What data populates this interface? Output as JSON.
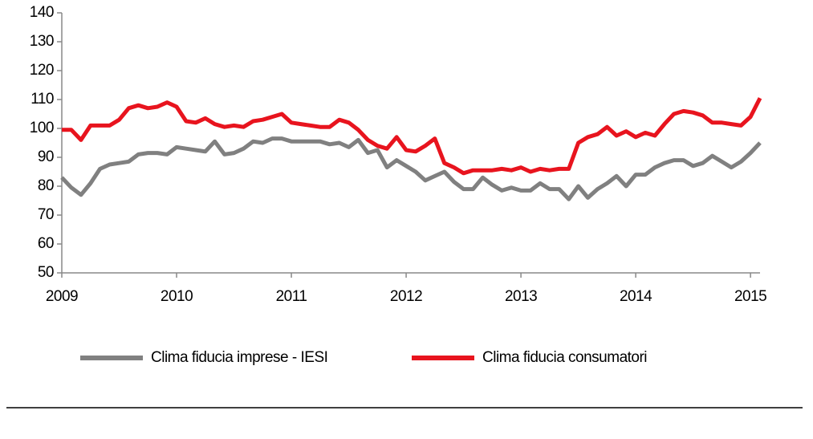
{
  "chart_data": {
    "type": "line",
    "x": [
      2009,
      2009.083,
      2009.167,
      2009.25,
      2009.333,
      2009.417,
      2009.5,
      2009.583,
      2009.667,
      2009.75,
      2009.833,
      2009.917,
      2010,
      2010.083,
      2010.167,
      2010.25,
      2010.333,
      2010.417,
      2010.5,
      2010.583,
      2010.667,
      2010.75,
      2010.833,
      2010.917,
      2011,
      2011.083,
      2011.167,
      2011.25,
      2011.333,
      2011.417,
      2011.5,
      2011.583,
      2011.667,
      2011.75,
      2011.833,
      2011.917,
      2012,
      2012.083,
      2012.167,
      2012.25,
      2012.333,
      2012.417,
      2012.5,
      2012.583,
      2012.667,
      2012.75,
      2012.833,
      2012.917,
      2013,
      2013.083,
      2013.167,
      2013.25,
      2013.333,
      2013.417,
      2013.5,
      2013.583,
      2013.667,
      2013.75,
      2013.833,
      2013.917,
      2014,
      2014.083,
      2014.167,
      2014.25,
      2014.333,
      2014.417,
      2014.5,
      2014.583,
      2014.667,
      2014.75,
      2014.833,
      2014.917,
      2015,
      2015.083
    ],
    "series": [
      {
        "name": "Clima fiducia imprese - IESI",
        "color": "#808080",
        "values": [
          83,
          79.5,
          77,
          81,
          86,
          87.5,
          88,
          88.5,
          91,
          91.5,
          91.5,
          91,
          93.5,
          93,
          92.5,
          92,
          95.5,
          91,
          91.5,
          93,
          95.5,
          95,
          96.5,
          96.5,
          95.5,
          95.5,
          95.5,
          95.5,
          94.5,
          95,
          93.5,
          96,
          91.5,
          92.5,
          86.5,
          89,
          87,
          85,
          82,
          83.5,
          85,
          81.5,
          79,
          79,
          83,
          80.5,
          78.5,
          79.5,
          78.5,
          78.5,
          81,
          79,
          79,
          75.5,
          80,
          76,
          79,
          81,
          83.5,
          80,
          84,
          84,
          86.5,
          88,
          89,
          89,
          87,
          88,
          90.5,
          88.5,
          86.5,
          88.5,
          91.5,
          95
        ]
      },
      {
        "name": "Clima fiducia consumatori",
        "color": "#e8141e",
        "values": [
          99.5,
          99.5,
          96,
          101,
          101,
          101,
          103,
          107,
          108,
          107,
          107.5,
          109,
          107.5,
          102.5,
          102,
          103.5,
          101.5,
          100.5,
          101,
          100.5,
          102.5,
          103,
          104,
          105,
          102,
          101.5,
          101,
          100.5,
          100.5,
          103,
          102,
          99.5,
          96,
          94,
          93,
          97,
          92.5,
          92,
          94,
          96.5,
          88,
          86.5,
          84.5,
          85.5,
          85.5,
          85.5,
          86,
          85.5,
          86.5,
          85,
          86,
          85.5,
          86,
          86,
          95,
          97,
          98,
          100.5,
          97.5,
          99,
          97,
          98.5,
          97.5,
          101.5,
          105,
          106,
          105.5,
          104.5,
          102,
          102,
          101.5,
          101,
          104,
          110.5
        ]
      }
    ],
    "xlim": [
      2009,
      2015.083
    ],
    "xticks": [
      2009,
      2010,
      2011,
      2012,
      2013,
      2014,
      2015
    ],
    "ylim": [
      50,
      140
    ],
    "yticks": [
      50,
      60,
      70,
      80,
      90,
      100,
      110,
      120,
      130,
      140
    ],
    "grid": false,
    "legend": "bottom"
  }
}
